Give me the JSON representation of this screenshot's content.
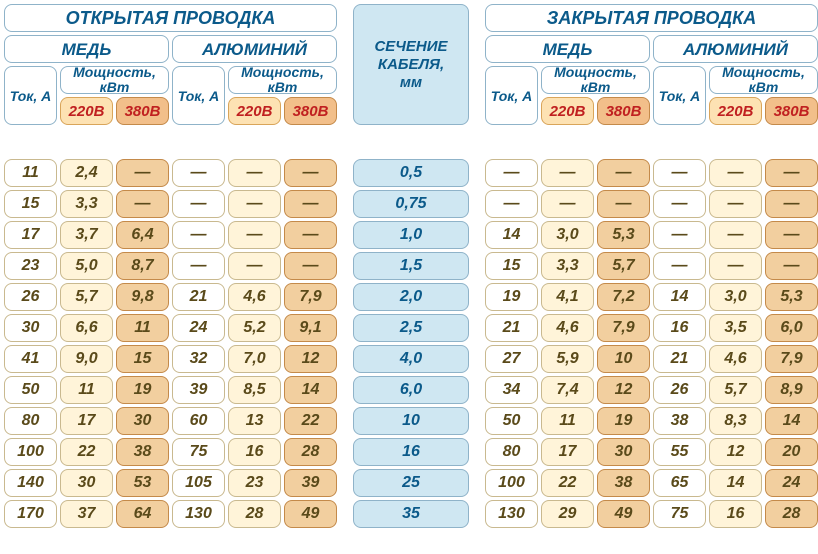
{
  "headers": {
    "open": "ОТКРЫТАЯ ПРОВОДКА",
    "closed": "ЗАКРЫТАЯ ПРОВОДКА",
    "copper": "МЕДЬ",
    "aluminum": "АЛЮМИНИЙ",
    "current": "Ток, А",
    "power1": "Мощность,",
    "power2": "кВт",
    "v220": "220В",
    "v380": "380В",
    "section1": "СЕЧЕНИЕ",
    "section2": "КАБЕЛЯ,",
    "section3": "мм"
  },
  "dash": "—",
  "sections": [
    "0,5",
    "0,75",
    "1,0",
    "1,5",
    "2,0",
    "2,5",
    "4,0",
    "6,0",
    "10",
    "16",
    "25",
    "35"
  ],
  "open_cu": [
    [
      "11",
      "2,4",
      "—"
    ],
    [
      "15",
      "3,3",
      "—"
    ],
    [
      "17",
      "3,7",
      "6,4"
    ],
    [
      "23",
      "5,0",
      "8,7"
    ],
    [
      "26",
      "5,7",
      "9,8"
    ],
    [
      "30",
      "6,6",
      "11"
    ],
    [
      "41",
      "9,0",
      "15"
    ],
    [
      "50",
      "11",
      "19"
    ],
    [
      "80",
      "17",
      "30"
    ],
    [
      "100",
      "22",
      "38"
    ],
    [
      "140",
      "30",
      "53"
    ],
    [
      "170",
      "37",
      "64"
    ]
  ],
  "open_al": [
    [
      "—",
      "—",
      "—"
    ],
    [
      "—",
      "—",
      "—"
    ],
    [
      "—",
      "—",
      "—"
    ],
    [
      "—",
      "—",
      "—"
    ],
    [
      "21",
      "4,6",
      "7,9"
    ],
    [
      "24",
      "5,2",
      "9,1"
    ],
    [
      "32",
      "7,0",
      "12"
    ],
    [
      "39",
      "8,5",
      "14"
    ],
    [
      "60",
      "13",
      "22"
    ],
    [
      "75",
      "16",
      "28"
    ],
    [
      "105",
      "23",
      "39"
    ],
    [
      "130",
      "28",
      "49"
    ]
  ],
  "closed_cu": [
    [
      "—",
      "—",
      "—"
    ],
    [
      "—",
      "—",
      "—"
    ],
    [
      "14",
      "3,0",
      "5,3"
    ],
    [
      "15",
      "3,3",
      "5,7"
    ],
    [
      "19",
      "4,1",
      "7,2"
    ],
    [
      "21",
      "4,6",
      "7,9"
    ],
    [
      "27",
      "5,9",
      "10"
    ],
    [
      "34",
      "7,4",
      "12"
    ],
    [
      "50",
      "11",
      "19"
    ],
    [
      "80",
      "17",
      "30"
    ],
    [
      "100",
      "22",
      "38"
    ],
    [
      "130",
      "29",
      "49"
    ]
  ],
  "closed_al": [
    [
      "—",
      "—",
      "—"
    ],
    [
      "—",
      "—",
      "—"
    ],
    [
      "—",
      "—",
      "—"
    ],
    [
      "—",
      "—",
      "—"
    ],
    [
      "14",
      "3,0",
      "5,3"
    ],
    [
      "16",
      "3,5",
      "6,0"
    ],
    [
      "21",
      "4,6",
      "7,9"
    ],
    [
      "26",
      "5,7",
      "8,9"
    ],
    [
      "38",
      "8,3",
      "14"
    ],
    [
      "55",
      "12",
      "20"
    ],
    [
      "65",
      "14",
      "24"
    ],
    [
      "75",
      "16",
      "28"
    ]
  ],
  "colors": {
    "h_border": "#8fb3c9",
    "h_text": "#0b5a8a",
    "v220_bg": "#fde2b3",
    "v380_bg": "#f2bf8a",
    "volt_text": "#c02020",
    "center_bg": "#cfe7f2",
    "white_bg": "#ffffff",
    "cream_bg": "#fff4d9",
    "tan_bg": "#f2cf9f",
    "data_text": "#5a4a1a",
    "data_border": "#c9b98f"
  }
}
